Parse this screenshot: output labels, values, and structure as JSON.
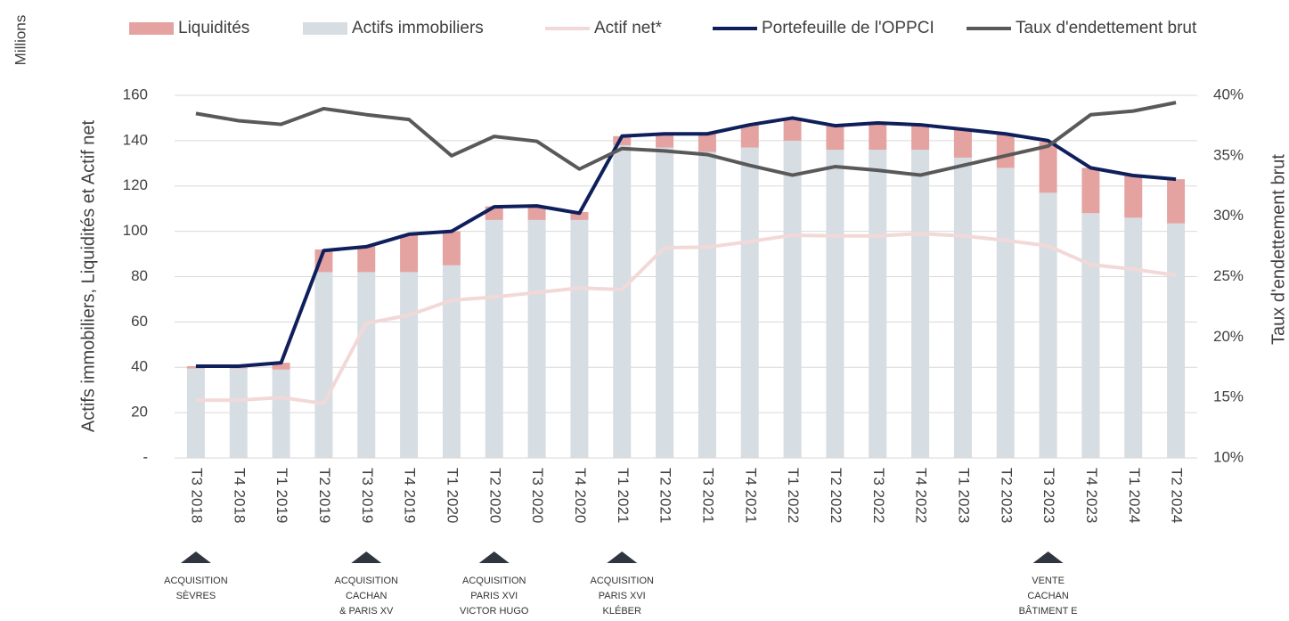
{
  "chart_data": {
    "type": "bar-line",
    "unit_label": "Millions",
    "y_label": "Actifs immobiliers, Liquidités  et Actif net",
    "y2_label": "Taux d'endettement brut",
    "categories": [
      "T3 2018",
      "T4 2018",
      "T1 2019",
      "T2 2019",
      "T3 2019",
      "T4 2019",
      "T1 2020",
      "T2 2020",
      "T3 2020",
      "T4 2020",
      "T1 2021",
      "T2 2021",
      "T3 2021",
      "T4 2021",
      "T1 2022",
      "T2 2022",
      "T3 2022",
      "T4 2022",
      "T1 2023",
      "T2 2023",
      "T3 2023",
      "T4 2023",
      "T1 2024",
      "T2 2024"
    ],
    "series": [
      {
        "name": "Liquidités",
        "kind": "bar",
        "color": "#e4a3a1",
        "values": [
          1,
          1,
          3,
          10,
          11.5,
          16.5,
          15,
          6,
          6,
          3.5,
          4,
          6,
          8,
          10,
          10,
          10.5,
          11.5,
          11,
          12.5,
          15,
          22.5,
          20,
          18.5,
          19.5
        ]
      },
      {
        "name": "Actifs immobiliers",
        "kind": "bar",
        "color": "#d6dde3",
        "values": [
          39.5,
          39.5,
          39,
          82,
          82,
          82,
          85,
          105,
          105,
          105,
          138,
          137,
          135,
          137,
          140,
          136,
          136,
          136,
          132.5,
          128,
          117,
          108,
          106,
          103.5
        ]
      },
      {
        "name": "Actif net*",
        "kind": "line",
        "color": "#f2d9d8",
        "values": [
          25.5,
          25.5,
          26.7,
          24,
          59.4,
          63,
          69.6,
          71,
          73,
          75,
          74.3,
          92.8,
          93,
          95.5,
          98.3,
          98,
          98,
          99,
          98,
          96,
          93.6,
          85.3,
          83.3,
          80.6
        ]
      },
      {
        "name": "Portefeuille de l'OPPCI",
        "kind": "line",
        "color": "#0f1f5c",
        "values": [
          40.5,
          40.5,
          42,
          91.5,
          93.2,
          98.7,
          100,
          110.8,
          111.2,
          108,
          142,
          143,
          143,
          147,
          150,
          146.6,
          147.8,
          147,
          145,
          143,
          140,
          128,
          124.6,
          123
        ]
      },
      {
        "name": "Taux d'endettement brut",
        "kind": "line",
        "axis": "y2",
        "color": "#595959",
        "values": [
          38.5,
          37.9,
          37.6,
          38.9,
          38.4,
          38,
          35,
          36.6,
          36.2,
          33.9,
          35.6,
          35.4,
          35.1,
          34.2,
          33.4,
          34.1,
          33.8,
          33.4,
          34.2,
          35,
          35.8,
          38.4,
          38.7,
          39.4
        ]
      }
    ],
    "ylim": [
      0,
      160
    ],
    "yticks": [
      {
        "value": 0,
        "label": "-"
      },
      20,
      40,
      60,
      80,
      100,
      120,
      140,
      160
    ],
    "y2lim": [
      10,
      40
    ],
    "y2ticks": [
      {
        "value": 10,
        "label": "10%"
      },
      {
        "value": 15,
        "label": "15%"
      },
      {
        "value": 20,
        "label": "20%"
      },
      {
        "value": 25,
        "label": "25%"
      },
      {
        "value": 30,
        "label": "30%"
      },
      {
        "value": 35,
        "label": "35%"
      },
      {
        "value": 40,
        "label": "40%"
      }
    ],
    "grid": true,
    "legend": "top",
    "annotations": [
      {
        "category": "T3 2018",
        "lines": [
          "ACQUISITION",
          "SÈVRES"
        ]
      },
      {
        "category": "T3 2019",
        "lines": [
          "ACQUISITION",
          "CACHAN",
          "& PARIS XV"
        ]
      },
      {
        "category": "T2 2020",
        "lines": [
          "ACQUISITION",
          "PARIS XVI",
          "VICTOR HUGO"
        ]
      },
      {
        "category": "T1 2021",
        "lines": [
          "ACQUISITION",
          "PARIS XVI",
          "KLÉBER"
        ]
      },
      {
        "category": "T3 2023",
        "lines": [
          "VENTE",
          "CACHAN",
          "BÂTIMENT E"
        ]
      }
    ]
  }
}
